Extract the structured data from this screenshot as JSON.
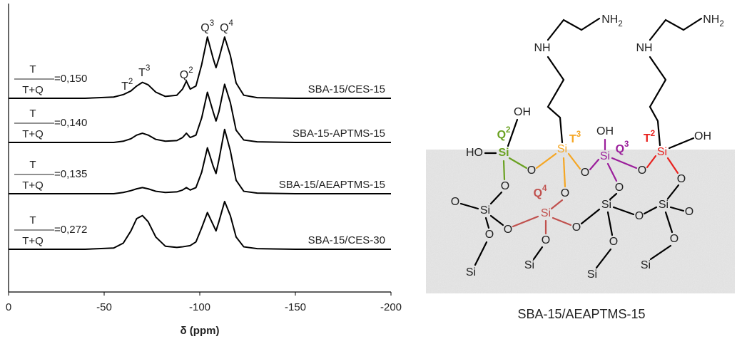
{
  "chart_data": {
    "type": "line",
    "xlabel": "δ (ppm)",
    "xlim": [
      0,
      -200
    ],
    "xticks": [
      0,
      -50,
      -100,
      -150,
      -200
    ],
    "x": [
      0,
      -20,
      -40,
      -55,
      -60,
      -64,
      -67,
      -70,
      -73,
      -77,
      -82,
      -88,
      -91,
      -93,
      -95,
      -98,
      -101,
      -104,
      -107,
      -108.5,
      -110,
      -113,
      -116,
      -119,
      -123,
      -130,
      -150,
      -175,
      -200
    ],
    "series": [
      {
        "name": "SBA-15/CES-15",
        "ratio_label": "=0,150",
        "color": "#000000",
        "values": [
          0,
          0,
          0,
          0.02,
          0.06,
          0.12,
          0.2,
          0.26,
          0.22,
          0.1,
          0.03,
          0.05,
          0.15,
          0.28,
          0.15,
          0.2,
          0.55,
          1.0,
          0.65,
          0.5,
          0.65,
          1.0,
          0.7,
          0.25,
          0.05,
          0.01,
          0,
          0,
          0
        ]
      },
      {
        "name": "SBA-15-APTMS-15",
        "ratio_label": "=0,140",
        "color": "#000000",
        "values": [
          0,
          0,
          0,
          0,
          0.02,
          0.06,
          0.12,
          0.15,
          0.12,
          0.05,
          0.02,
          0.03,
          0.08,
          0.15,
          0.08,
          0.12,
          0.4,
          0.82,
          0.5,
          0.35,
          0.5,
          0.95,
          0.65,
          0.2,
          0.04,
          0.01,
          0,
          0,
          0
        ]
      },
      {
        "name": "SBA-15/AEAPTMS-15",
        "ratio_label": "=0,135",
        "color": "#000000",
        "values": [
          0,
          0,
          0,
          0,
          0.02,
          0.05,
          0.08,
          0.1,
          0.08,
          0.04,
          0.02,
          0.03,
          0.06,
          0.1,
          0.06,
          0.1,
          0.35,
          0.75,
          0.45,
          0.33,
          0.55,
          1.05,
          0.7,
          0.22,
          0.04,
          0.01,
          0,
          0,
          0
        ]
      },
      {
        "name": "SBA-15/CES-30",
        "ratio_label": "=0,272",
        "color": "#000000",
        "values": [
          0,
          0,
          0,
          0.02,
          0.1,
          0.3,
          0.5,
          0.55,
          0.45,
          0.2,
          0.05,
          0.03,
          0.04,
          0.05,
          0.06,
          0.12,
          0.35,
          0.6,
          0.4,
          0.3,
          0.45,
          0.78,
          0.55,
          0.2,
          0.04,
          0.01,
          0,
          0,
          0
        ]
      }
    ],
    "ratio_fraction": {
      "numerator": "T",
      "denominator": "T+Q"
    },
    "annotations": [
      {
        "text": "T",
        "sup": "2",
        "x": -62
      },
      {
        "text": "T",
        "sup": "3",
        "x": -71
      },
      {
        "text": "Q",
        "sup": "2",
        "x": -93
      },
      {
        "text": "Q",
        "sup": "3",
        "x": -104
      },
      {
        "text": "Q",
        "sup": "4",
        "x": -114
      }
    ]
  },
  "diagram": {
    "caption": "SBA-15/AEAPTMS-15",
    "labels": [
      {
        "text": "NH",
        "sub": "2"
      },
      {
        "text": "NH",
        "sub": "2"
      },
      "NH",
      "NH",
      "OH",
      "HO",
      "Si",
      {
        "text": "Q",
        "sup": "2"
      },
      "O",
      "Si",
      {
        "text": "T",
        "sup": "3"
      },
      "O",
      "OH",
      "Si",
      {
        "text": "Q",
        "sup": "3"
      },
      "O",
      "Si",
      {
        "text": "T",
        "sup": "2"
      },
      "OH",
      "O",
      "Si",
      "O",
      "O",
      "O",
      "Si",
      "O",
      {
        "text": "Q",
        "sup": "4"
      },
      "Si",
      "O",
      "O",
      "Si",
      "O",
      "Si",
      "O",
      "O",
      "Si",
      "O",
      "Si",
      "O",
      "O",
      "Si"
    ]
  }
}
